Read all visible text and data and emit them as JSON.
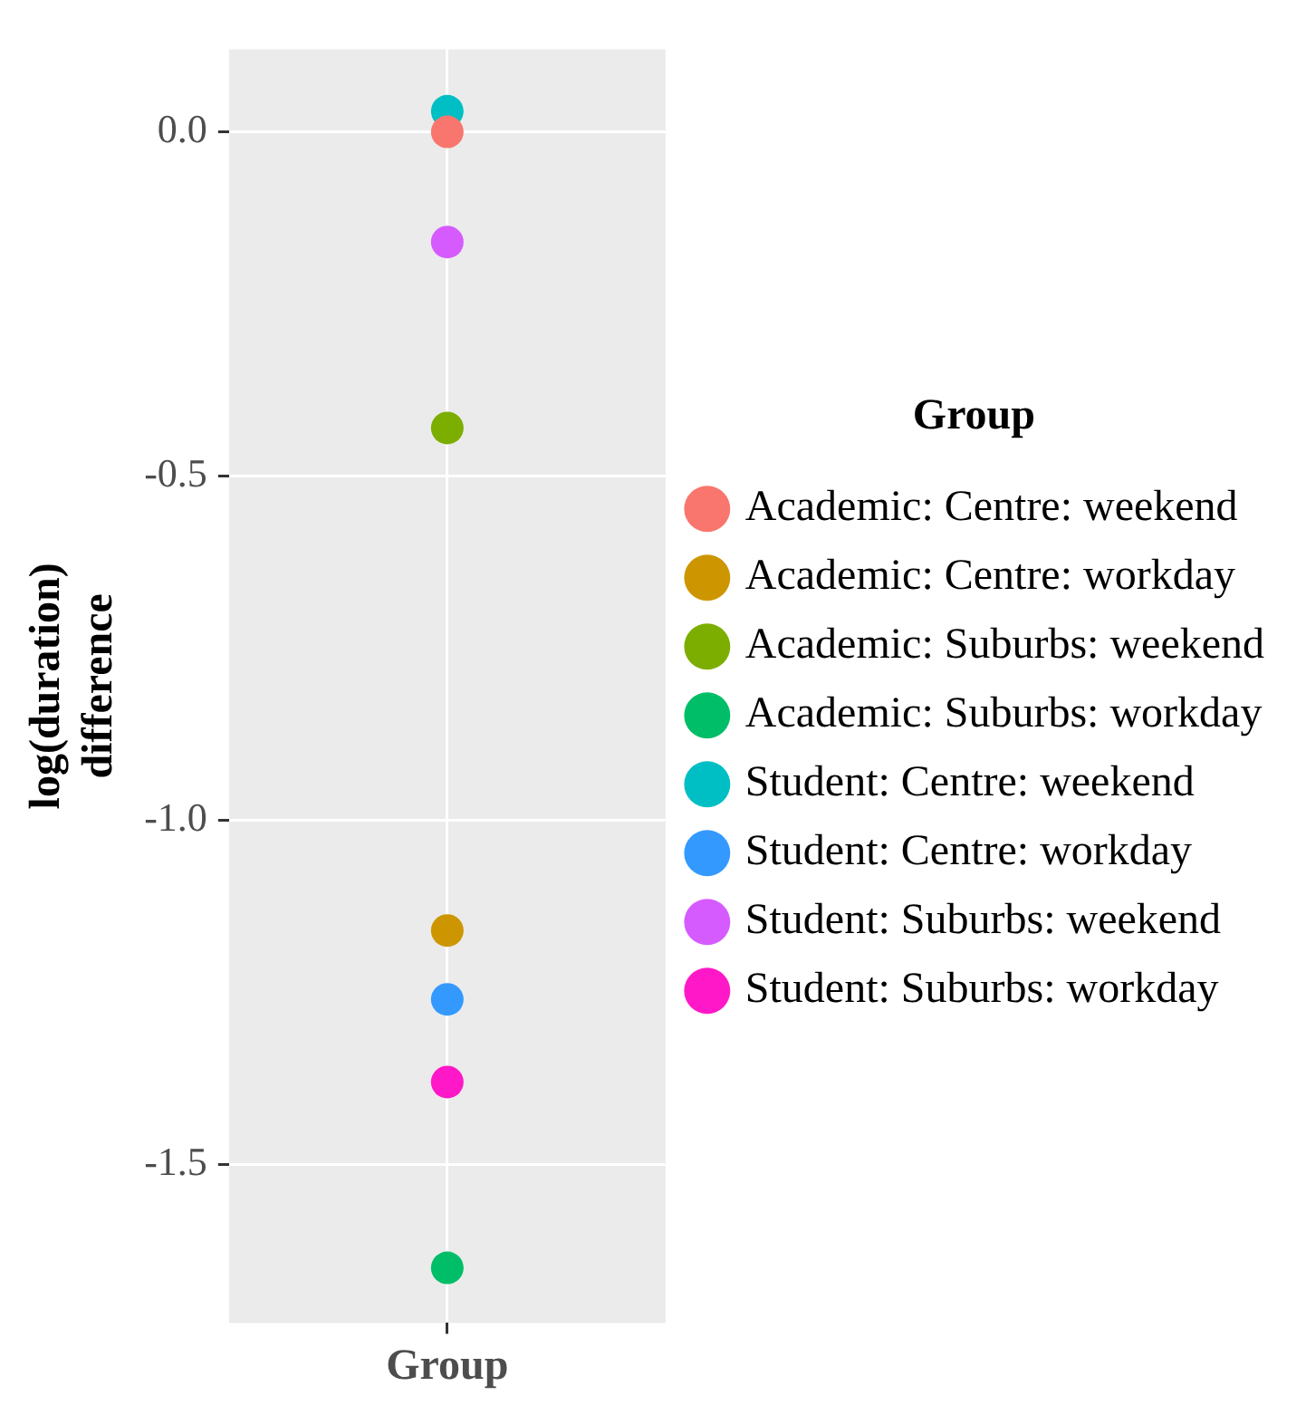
{
  "chart_data": {
    "type": "scatter",
    "xlabel": "Group",
    "ylabel": "log(duration) difference",
    "legend_title": "Group",
    "categories": [
      null
    ],
    "series": [
      {
        "name": "Academic: Centre: weekend",
        "color": "#f8766d",
        "values": [
          0.0
        ]
      },
      {
        "name": "Academic: Centre: workday",
        "color": "#cd9600",
        "values": [
          -1.16
        ]
      },
      {
        "name": "Academic: Suburbs: weekend",
        "color": "#7cae00",
        "values": [
          -0.43
        ]
      },
      {
        "name": "Academic: Suburbs: workday",
        "color": "#00be67",
        "values": [
          -1.65
        ]
      },
      {
        "name": "Student: Centre: weekend",
        "color": "#00bfc4",
        "values": [
          0.03
        ]
      },
      {
        "name": "Student: Centre: workday",
        "color": "#3399ff",
        "values": [
          -1.26
        ]
      },
      {
        "name": "Student: Suburbs: weekend",
        "color": "#d65bff",
        "values": [
          -0.16
        ]
      },
      {
        "name": "Student: Suburbs: workday",
        "color": "#ff18c8",
        "values": [
          -1.38
        ]
      }
    ],
    "ylim": [
      -1.73,
      0.12
    ],
    "yticks": [
      {
        "value": 0.0,
        "label": "0.0"
      },
      -0.5,
      {
        "value": -1.0,
        "label": "-1.0"
      },
      -1.5
    ],
    "grid": true,
    "legend": "right",
    "marker": "circle"
  }
}
